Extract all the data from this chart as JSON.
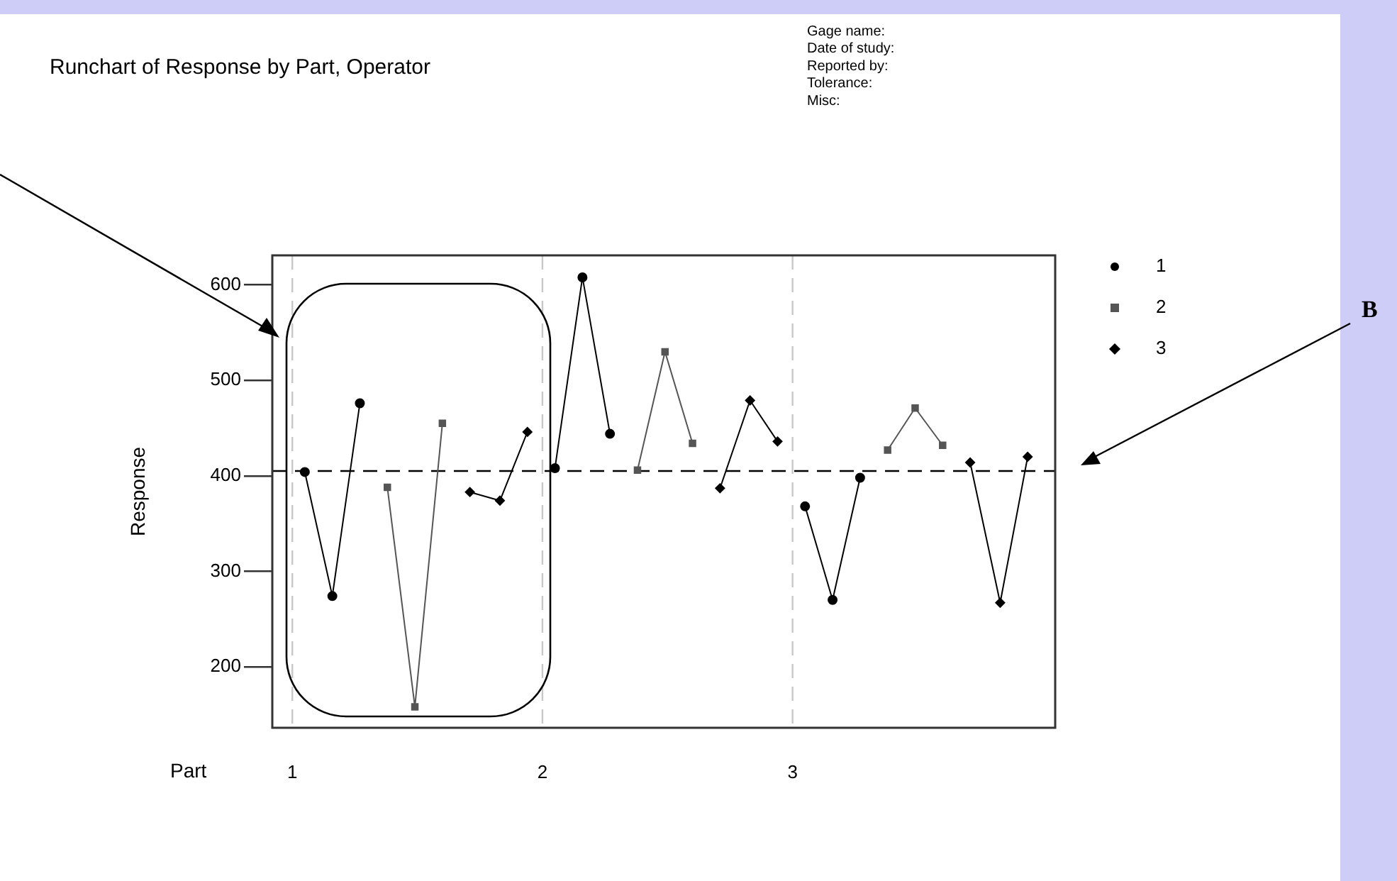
{
  "chart_data": {
    "type": "line",
    "title": "Runchart of Response by Part, Operator",
    "xlabel": "Part",
    "ylabel": "Response",
    "xlim": [
      0.92,
      4.05
    ],
    "xticks": [
      1,
      2,
      3
    ],
    "ylim": [
      136,
      631
    ],
    "yticks": [
      200,
      300,
      400,
      500,
      600
    ],
    "grid": false,
    "legend": "right",
    "line_style": "solid",
    "series": [
      {
        "name": "1",
        "color": "#000000",
        "marker": "circle",
        "x": [
          1.05,
          1.16,
          1.27,
          1.5,
          2.05,
          2.16,
          2.27,
          2.5,
          3.05,
          3.16,
          3.27
        ],
        "values": [
          404,
          274,
          476,
          null,
          408,
          608,
          444,
          null,
          368,
          270,
          398
        ]
      },
      {
        "name": "2",
        "color": "#555555",
        "marker": "square",
        "x": [
          1.38,
          1.49,
          1.6,
          1.8,
          2.38,
          2.49,
          2.6,
          2.8,
          3.38,
          3.49,
          3.6
        ],
        "values": [
          388,
          158,
          455,
          null,
          406,
          530,
          434,
          null,
          427,
          471,
          432
        ]
      },
      {
        "name": "3",
        "color": "#000000",
        "marker": "diamond",
        "x": [
          1.71,
          1.83,
          1.94,
          2.0,
          2.71,
          2.83,
          2.94,
          3.0,
          3.71,
          3.83,
          3.94
        ],
        "values": [
          383,
          374,
          446,
          null,
          387,
          479,
          436,
          null,
          414,
          267,
          420
        ]
      }
    ],
    "ref_lines": [
      {
        "axis": "y",
        "value": 405,
        "color": "#000000",
        "line_style": "dashed"
      },
      {
        "axis": "x",
        "value": 1,
        "color": "#c8c8c8",
        "line_style": "dashed"
      },
      {
        "axis": "x",
        "value": 2,
        "color": "#c8c8c8",
        "line_style": "dashed"
      },
      {
        "axis": "x",
        "value": 3,
        "color": "#c8c8c8",
        "line_style": "dashed"
      }
    ],
    "annotations": [
      "Gage name:",
      "Date of study:",
      "Reported by:",
      "Tolerance:",
      "Misc:",
      "B"
    ]
  }
}
